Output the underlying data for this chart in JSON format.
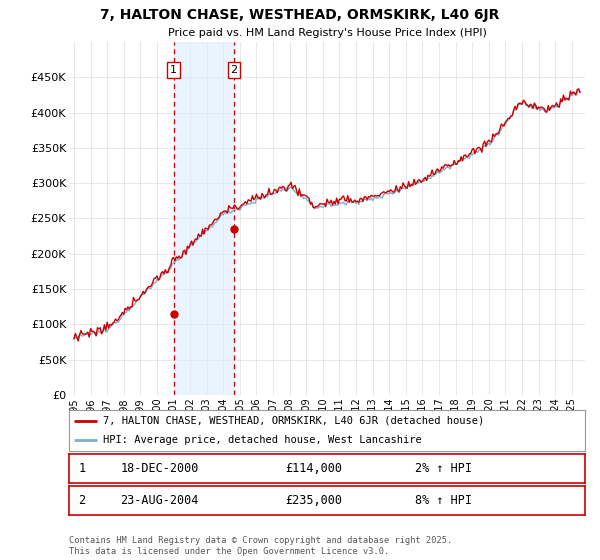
{
  "title": "7, HALTON CHASE, WESTHEAD, ORMSKIRK, L40 6JR",
  "subtitle": "Price paid vs. HM Land Registry's House Price Index (HPI)",
  "ylim": [
    0,
    500000
  ],
  "xlim_start": 1994.7,
  "xlim_end": 2025.8,
  "sale1_date": 2001.0,
  "sale1_price": 114000,
  "sale1_label": "1",
  "sale1_text": "18-DEC-2000",
  "sale1_price_str": "£114,000",
  "sale1_hpi_str": "2% ↑ HPI",
  "sale2_date": 2004.65,
  "sale2_price": 235000,
  "sale2_label": "2",
  "sale2_text": "23-AUG-2004",
  "sale2_price_str": "£235,000",
  "sale2_hpi_str": "8% ↑ HPI",
  "hpi_line_color": "#7bafd4",
  "price_line_color": "#cc0000",
  "shade_color": "#ddeeff",
  "legend1": "7, HALTON CHASE, WESTHEAD, ORMSKIRK, L40 6JR (detached house)",
  "legend2": "HPI: Average price, detached house, West Lancashire",
  "footer": "Contains HM Land Registry data © Crown copyright and database right 2025.\nThis data is licensed under the Open Government Licence v3.0.",
  "ytick_labels": [
    "£0",
    "£50K",
    "£100K",
    "£150K",
    "£200K",
    "£250K",
    "£300K",
    "£350K",
    "£400K",
    "£450K"
  ],
  "ytick_values": [
    0,
    50000,
    100000,
    150000,
    200000,
    250000,
    300000,
    350000,
    400000,
    450000
  ],
  "background_color": "#ffffff"
}
